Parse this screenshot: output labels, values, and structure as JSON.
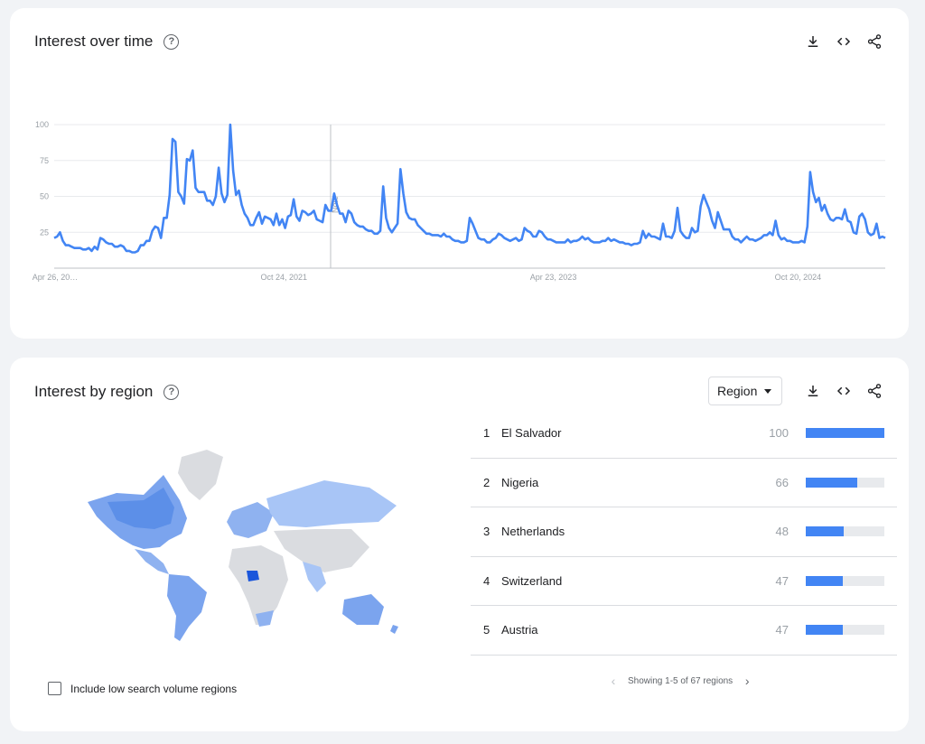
{
  "time_card": {
    "title": "Interest over time",
    "help_icon": "?",
    "icons": [
      "download-icon",
      "embed-icon",
      "share-icon"
    ]
  },
  "chart_data": {
    "type": "line",
    "title": "",
    "ylim": [
      0,
      100
    ],
    "yticks": [
      "100",
      "75",
      "50",
      "25"
    ],
    "x_tick_labels": [
      "Apr 26, 20…",
      "Oct 24, 2021",
      "Apr 23, 2023",
      "Oct 20, 2024"
    ],
    "annotation": "Note",
    "color": "#4285f4",
    "grid": true,
    "series": [
      {
        "values": [
          21,
          22,
          25,
          19,
          16,
          16,
          15,
          14,
          14,
          14,
          13,
          13,
          14,
          12,
          15,
          13,
          21,
          20,
          18,
          17,
          17,
          15,
          15,
          16,
          15,
          12,
          12,
          11,
          11,
          12,
          16,
          16,
          19,
          19,
          26,
          29,
          28,
          21,
          35,
          35,
          51,
          90,
          88,
          53,
          50,
          45,
          76,
          75,
          82,
          56,
          53,
          53,
          53,
          47,
          47,
          44,
          50,
          70,
          52,
          46,
          51,
          100,
          68,
          51,
          54,
          44,
          38,
          35,
          30,
          30,
          35,
          39,
          31,
          36,
          35,
          34,
          30,
          38,
          30,
          34,
          28,
          36,
          37,
          48,
          36,
          33,
          40,
          39,
          37,
          38,
          40,
          34,
          33,
          32,
          44,
          40,
          40,
          52,
          44,
          38,
          38,
          32,
          40,
          38,
          32,
          30,
          29,
          29,
          27,
          26,
          26,
          24,
          24,
          26,
          57,
          35,
          28,
          25,
          28,
          31,
          69,
          52,
          39,
          35,
          34,
          34,
          30,
          28,
          26,
          24,
          24,
          23,
          23,
          23,
          22,
          24,
          22,
          22,
          20,
          19,
          19,
          18,
          18,
          19,
          35,
          31,
          26,
          21,
          20,
          20,
          18,
          18,
          20,
          21,
          24,
          23,
          21,
          20,
          19,
          20,
          21,
          19,
          20,
          28,
          26,
          25,
          22,
          22,
          26,
          25,
          22,
          20,
          20,
          19,
          18,
          18,
          18,
          18,
          20,
          18,
          19,
          19,
          20,
          22,
          20,
          21,
          19,
          18,
          18,
          18,
          19,
          19,
          21,
          19,
          20,
          19,
          18,
          18,
          17,
          17,
          16,
          17,
          17,
          18,
          26,
          21,
          24,
          22,
          22,
          21,
          20,
          31,
          22,
          22,
          21,
          26,
          42,
          26,
          23,
          21,
          21,
          28,
          25,
          26,
          43,
          51,
          46,
          41,
          33,
          28,
          39,
          33,
          27,
          27,
          27,
          22,
          20,
          20,
          18,
          20,
          22,
          20,
          20,
          19,
          20,
          21,
          23,
          23,
          25,
          23,
          33,
          23,
          20,
          21,
          19,
          19,
          18,
          18,
          18,
          19,
          18,
          29,
          67,
          53,
          46,
          49,
          40,
          44,
          38,
          34,
          33,
          35,
          35,
          34,
          41,
          33,
          32,
          25,
          24,
          36,
          38,
          34,
          25,
          23,
          24,
          31,
          21,
          22,
          21
        ]
      }
    ]
  },
  "region_card": {
    "title": "Interest by region",
    "help_icon": "?",
    "select_label": "Region",
    "icons": [
      "download-icon",
      "embed-icon",
      "share-icon"
    ],
    "rankings": [
      {
        "rank": "1",
        "name": "El Salvador",
        "value": "100",
        "level": 100
      },
      {
        "rank": "2",
        "name": "Nigeria",
        "value": "66",
        "level": 66
      },
      {
        "rank": "3",
        "name": "Netherlands",
        "value": "48",
        "level": 48
      },
      {
        "rank": "4",
        "name": "Switzerland",
        "value": "47",
        "level": 47
      },
      {
        "rank": "5",
        "name": "Austria",
        "value": "47",
        "level": 47
      }
    ],
    "pager_text": "Showing 1-5 of 67 regions",
    "checkbox_label": "Include low search volume regions"
  }
}
